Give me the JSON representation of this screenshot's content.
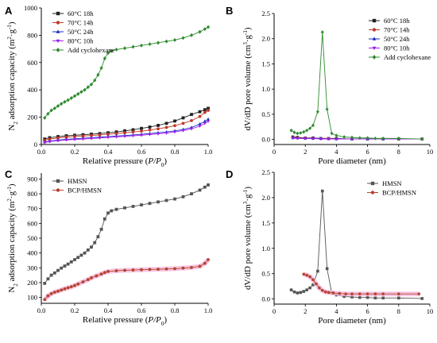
{
  "colors": {
    "black": "#222222",
    "red": "#c0392b",
    "blue": "#1f2fbf",
    "purple": "#a020f0",
    "green": "#2e8b2e",
    "grey": "#555555",
    "brick": "#b5432f",
    "pink_band": "#f4b8dc"
  },
  "chart_data": [
    {
      "id": "A",
      "type": "line",
      "title": "A",
      "xlabel": "Relative pressure (P/P0)",
      "ylabel": "N2 adsorption capacity (m2·g-1)",
      "xlim": [
        0.0,
        1.0
      ],
      "ylim": [
        0,
        1000
      ],
      "xticks": [
        "0.0",
        "0.2",
        "0.4",
        "0.6",
        "0.8",
        "1.0"
      ],
      "yticks": [
        "0",
        "200",
        "400",
        "600",
        "800",
        "1000"
      ],
      "legend_position": "top-left",
      "series": [
        {
          "name": "60°C 18h",
          "marker": "square",
          "color": "black",
          "x": [
            0.02,
            0.05,
            0.1,
            0.15,
            0.2,
            0.25,
            0.3,
            0.35,
            0.4,
            0.45,
            0.5,
            0.55,
            0.6,
            0.65,
            0.7,
            0.75,
            0.8,
            0.85,
            0.9,
            0.95,
            0.98,
            1.0
          ],
          "y": [
            40,
            50,
            58,
            64,
            68,
            72,
            76,
            80,
            86,
            92,
            100,
            108,
            118,
            128,
            140,
            155,
            172,
            195,
            220,
            240,
            255,
            265
          ]
        },
        {
          "name": "70°C 14h",
          "marker": "circle",
          "color": "red",
          "x": [
            0.02,
            0.05,
            0.1,
            0.15,
            0.2,
            0.25,
            0.3,
            0.35,
            0.4,
            0.45,
            0.5,
            0.55,
            0.6,
            0.65,
            0.7,
            0.75,
            0.8,
            0.85,
            0.9,
            0.95,
            0.98,
            1.0
          ],
          "y": [
            30,
            40,
            48,
            54,
            58,
            62,
            66,
            70,
            75,
            80,
            86,
            92,
            98,
            106,
            115,
            125,
            138,
            155,
            175,
            205,
            235,
            250
          ]
        },
        {
          "name": "50°C 24h",
          "marker": "triangle-up",
          "color": "blue",
          "x": [
            0.02,
            0.05,
            0.1,
            0.15,
            0.2,
            0.25,
            0.3,
            0.35,
            0.4,
            0.45,
            0.5,
            0.55,
            0.6,
            0.65,
            0.7,
            0.75,
            0.8,
            0.85,
            0.9,
            0.95,
            0.98,
            1.0
          ],
          "y": [
            18,
            25,
            32,
            38,
            42,
            46,
            50,
            54,
            58,
            62,
            66,
            70,
            75,
            80,
            86,
            92,
            100,
            110,
            125,
            150,
            170,
            185
          ]
        },
        {
          "name": "80°C 10h",
          "marker": "triangle-down",
          "color": "purple",
          "x": [
            0.02,
            0.05,
            0.1,
            0.15,
            0.2,
            0.25,
            0.3,
            0.35,
            0.4,
            0.45,
            0.5,
            0.55,
            0.6,
            0.65,
            0.7,
            0.75,
            0.8,
            0.85,
            0.9,
            0.95,
            0.98,
            1.0
          ],
          "y": [
            15,
            22,
            28,
            33,
            37,
            40,
            44,
            48,
            52,
            56,
            60,
            64,
            68,
            73,
            78,
            84,
            92,
            102,
            115,
            135,
            155,
            170
          ]
        },
        {
          "name": "Add cyclohexane",
          "marker": "diamond",
          "color": "green",
          "x": [
            0.02,
            0.04,
            0.06,
            0.08,
            0.1,
            0.12,
            0.14,
            0.16,
            0.18,
            0.2,
            0.22,
            0.24,
            0.26,
            0.28,
            0.3,
            0.32,
            0.34,
            0.36,
            0.38,
            0.4,
            0.42,
            0.45,
            0.5,
            0.55,
            0.6,
            0.65,
            0.7,
            0.75,
            0.8,
            0.85,
            0.9,
            0.95,
            0.98,
            1.0
          ],
          "y": [
            195,
            225,
            250,
            265,
            282,
            298,
            312,
            325,
            340,
            355,
            370,
            385,
            400,
            420,
            440,
            470,
            510,
            560,
            630,
            670,
            685,
            695,
            705,
            715,
            725,
            735,
            745,
            755,
            765,
            780,
            800,
            825,
            845,
            860
          ]
        }
      ]
    },
    {
      "id": "B",
      "type": "line",
      "title": "B",
      "xlabel": "Pore diameter (nm)",
      "ylabel": "dV/dD pore volume (cm3·g-1)",
      "xlim": [
        0,
        10
      ],
      "ylim": [
        -0.1,
        2.5
      ],
      "xticks": [
        "0",
        "2",
        "4",
        "6",
        "8",
        "10"
      ],
      "yticks": [
        "0.0",
        "0.5",
        "1.0",
        "1.5",
        "2.0",
        "2.5"
      ],
      "legend_position": "top-right",
      "series": [
        {
          "name": "60°C 18h",
          "marker": "square",
          "color": "black",
          "x": [
            1.2,
            1.5,
            2.0,
            2.5,
            3.0,
            3.5,
            4.0,
            5.0,
            6.0,
            7.0,
            8.0,
            9.5
          ],
          "y": [
            0.05,
            0.04,
            0.03,
            0.03,
            0.02,
            0.02,
            0.02,
            0.01,
            0.01,
            0.01,
            0.01,
            0.01
          ]
        },
        {
          "name": "70°C 14h",
          "marker": "circle",
          "color": "red",
          "x": [
            1.2,
            1.5,
            2.0,
            2.5,
            3.0,
            3.5,
            4.0,
            5.0,
            6.0,
            7.0,
            8.0,
            9.5
          ],
          "y": [
            0.04,
            0.03,
            0.03,
            0.02,
            0.02,
            0.02,
            0.01,
            0.01,
            0.01,
            0.01,
            0.01,
            0.01
          ]
        },
        {
          "name": "50°C 24h",
          "marker": "triangle-up",
          "color": "blue",
          "x": [
            1.2,
            1.5,
            2.0,
            2.5,
            3.0,
            3.5,
            4.0,
            5.0,
            6.0,
            7.0,
            8.0,
            9.5
          ],
          "y": [
            0.03,
            0.03,
            0.02,
            0.02,
            0.02,
            0.01,
            0.01,
            0.01,
            0.01,
            0.01,
            0.01,
            0.01
          ]
        },
        {
          "name": "80°C 10h",
          "marker": "triangle-down",
          "color": "purple",
          "x": [
            1.2,
            1.5,
            2.0,
            2.5,
            3.0,
            3.5,
            4.0,
            5.0,
            6.0,
            7.0,
            8.0,
            9.5
          ],
          "y": [
            0.03,
            0.02,
            0.02,
            0.02,
            0.01,
            0.01,
            0.01,
            0.01,
            0.01,
            0.01,
            0.01,
            0.01
          ]
        },
        {
          "name": "Add cyclohexane",
          "marker": "diamond",
          "color": "green",
          "x": [
            1.1,
            1.3,
            1.5,
            1.7,
            1.9,
            2.1,
            2.3,
            2.5,
            2.8,
            3.1,
            3.4,
            3.7,
            4.0,
            4.5,
            5.0,
            5.5,
            6.0,
            6.5,
            7.0,
            8.0,
            9.5
          ],
          "y": [
            0.18,
            0.14,
            0.12,
            0.13,
            0.15,
            0.18,
            0.22,
            0.28,
            0.55,
            2.13,
            0.6,
            0.12,
            0.08,
            0.05,
            0.04,
            0.03,
            0.03,
            0.02,
            0.02,
            0.02,
            0.01
          ]
        }
      ]
    },
    {
      "id": "C",
      "type": "line",
      "title": "C",
      "xlabel": "Relative pressure (P/P0)",
      "ylabel": "N2 adsorption capacity (m2·g-1)",
      "xlim": [
        0.0,
        1.0
      ],
      "ylim": [
        60,
        940
      ],
      "xticks": [
        "0.0",
        "0.2",
        "0.4",
        "0.6",
        "0.8",
        "1.0"
      ],
      "yticks": [
        "100",
        "200",
        "300",
        "400",
        "500",
        "600",
        "700",
        "800",
        "900"
      ],
      "legend_position": "top-left",
      "series": [
        {
          "name": "HMSN",
          "marker": "square",
          "color": "grey",
          "x": [
            0.02,
            0.04,
            0.06,
            0.08,
            0.1,
            0.12,
            0.14,
            0.16,
            0.18,
            0.2,
            0.22,
            0.24,
            0.26,
            0.28,
            0.3,
            0.32,
            0.34,
            0.36,
            0.38,
            0.4,
            0.42,
            0.45,
            0.5,
            0.55,
            0.6,
            0.65,
            0.7,
            0.75,
            0.8,
            0.85,
            0.9,
            0.95,
            0.98,
            1.0
          ],
          "y": [
            195,
            225,
            250,
            265,
            282,
            298,
            312,
            325,
            340,
            355,
            370,
            385,
            400,
            420,
            440,
            470,
            510,
            560,
            630,
            670,
            685,
            695,
            705,
            715,
            725,
            735,
            745,
            755,
            765,
            780,
            800,
            825,
            845,
            860
          ]
        },
        {
          "name": "BCP/HMSN",
          "marker": "circle",
          "color": "brick",
          "x": [
            0.02,
            0.04,
            0.06,
            0.08,
            0.1,
            0.12,
            0.14,
            0.16,
            0.18,
            0.2,
            0.22,
            0.25,
            0.28,
            0.3,
            0.33,
            0.36,
            0.38,
            0.4,
            0.45,
            0.5,
            0.55,
            0.6,
            0.65,
            0.7,
            0.75,
            0.8,
            0.85,
            0.9,
            0.95,
            0.98,
            1.0
          ],
          "y": [
            85,
            110,
            125,
            135,
            142,
            150,
            158,
            165,
            172,
            180,
            190,
            205,
            220,
            232,
            245,
            258,
            268,
            275,
            280,
            283,
            285,
            287,
            289,
            290,
            292,
            294,
            298,
            302,
            310,
            330,
            355
          ]
        }
      ]
    },
    {
      "id": "D",
      "type": "line",
      "title": "D",
      "xlabel": "Pore diameter (nm)",
      "ylabel": "dV/dD pore volume (cm3·g-1)",
      "xlim": [
        0,
        10
      ],
      "ylim": [
        -0.1,
        2.5
      ],
      "xticks": [
        "0",
        "2",
        "4",
        "6",
        "8",
        "10"
      ],
      "yticks": [
        "0.0",
        "0.5",
        "1.0",
        "1.5",
        "2.0",
        "2.5"
      ],
      "legend_position": "top-right",
      "series": [
        {
          "name": "HMSN",
          "marker": "square",
          "color": "grey",
          "x": [
            1.1,
            1.3,
            1.5,
            1.7,
            1.9,
            2.1,
            2.3,
            2.5,
            2.8,
            3.1,
            3.4,
            3.7,
            4.0,
            4.5,
            5.0,
            5.5,
            6.0,
            6.5,
            7.0,
            8.0,
            9.5
          ],
          "y": [
            0.18,
            0.14,
            0.12,
            0.13,
            0.15,
            0.18,
            0.22,
            0.28,
            0.55,
            2.13,
            0.6,
            0.12,
            0.08,
            0.05,
            0.04,
            0.03,
            0.03,
            0.02,
            0.02,
            0.02,
            0.01
          ]
        },
        {
          "name": "BCP/HMSN",
          "marker": "circle",
          "color": "brick",
          "x": [
            1.9,
            2.1,
            2.3,
            2.5,
            2.7,
            2.9,
            3.1,
            3.3,
            3.5,
            3.8,
            4.2,
            4.6,
            5.0,
            5.5,
            6.0,
            6.5,
            7.0,
            8.0,
            9.3
          ],
          "y": [
            0.49,
            0.47,
            0.44,
            0.38,
            0.3,
            0.22,
            0.17,
            0.14,
            0.13,
            0.12,
            0.11,
            0.1,
            0.1,
            0.1,
            0.1,
            0.1,
            0.1,
            0.1,
            0.1
          ]
        }
      ]
    }
  ]
}
